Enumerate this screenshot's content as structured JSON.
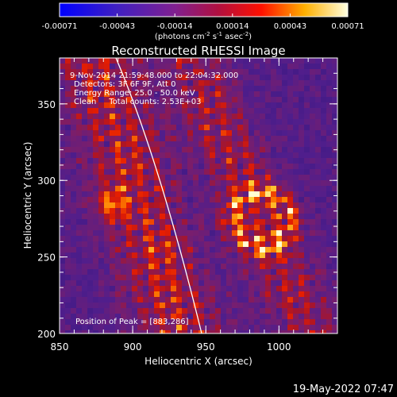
{
  "colorbar": {
    "tick_labels": [
      "-0.00071",
      "-0.00043",
      "-0.00014",
      "0.00014",
      "0.00043",
      "0.00071"
    ],
    "units_main": "(photons cm",
    "units_sup1": "-2",
    "units_mid": " s",
    "units_sup2": "-1",
    "units_end": " asec",
    "units_sup3": "-2",
    "units_close": ")"
  },
  "plot": {
    "title": "Reconstructed RHESSI Image",
    "xlabel": "Heliocentric X (arcsec)",
    "ylabel": "Heliocentric Y (arcsec)",
    "x_ticks": [
      "850",
      "900",
      "950",
      "1000"
    ],
    "y_ticks": [
      "200",
      "250",
      "300",
      "350"
    ],
    "annotations": {
      "line1": "9-Nov-2014 21:59:48.000 to 22:04:32.000",
      "line2": "Detectors: 3F 6F 9F, Att 0",
      "line3": "Energy Range: 25.0 - 50.0 keV",
      "line4": "Clean     Total counts: 2.53E+03",
      "peak": "Position of Peak = [883,286]"
    }
  },
  "footer_date": "19-May-2022 07:47",
  "chart_data": {
    "type": "heatmap",
    "title": "Reconstructed RHESSI Image",
    "xlabel": "Heliocentric X (arcsec)",
    "ylabel": "Heliocentric Y (arcsec)",
    "xlim": [
      850,
      1040
    ],
    "ylim": [
      200,
      380
    ],
    "colorbar_range": [
      -0.00071,
      0.00071
    ],
    "peak": [
      883,
      286
    ]
  }
}
